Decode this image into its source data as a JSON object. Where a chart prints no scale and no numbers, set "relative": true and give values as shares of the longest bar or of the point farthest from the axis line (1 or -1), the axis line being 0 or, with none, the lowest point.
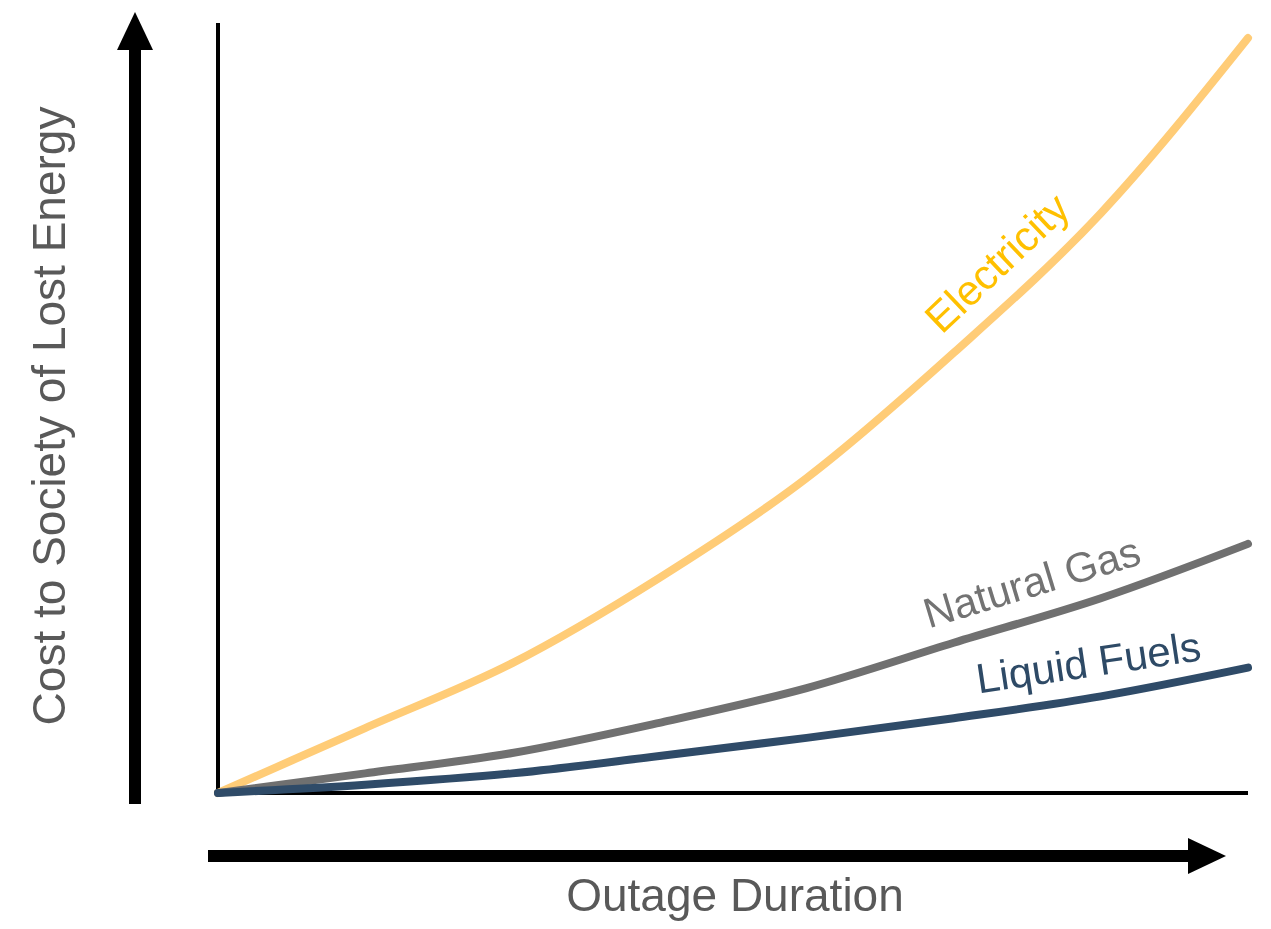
{
  "chart_data": {
    "type": "line",
    "relative": true,
    "xlabel": "Outage Duration",
    "ylabel": "Cost to Society of Lost Energy",
    "categories": [
      null,
      null,
      null,
      null,
      null,
      null,
      null,
      null
    ],
    "marker": "none",
    "line_style": "solid",
    "series": [
      {
        "name": "Electricity",
        "color": "#ffcc77",
        "values": [
          0,
          0.086,
          0.172,
          0.285,
          0.417,
          0.583,
          0.768,
          1.0
        ]
      },
      {
        "name": "Natural Gas",
        "color": "#707070",
        "values": [
          0,
          0.026,
          0.053,
          0.093,
          0.139,
          0.199,
          0.258,
          0.33
        ]
      },
      {
        "name": "Liquid Fuels",
        "color": "#2f4b68",
        "values": [
          0,
          0.011,
          0.026,
          0.049,
          0.073,
          0.099,
          0.128,
          0.166
        ]
      }
    ]
  }
}
